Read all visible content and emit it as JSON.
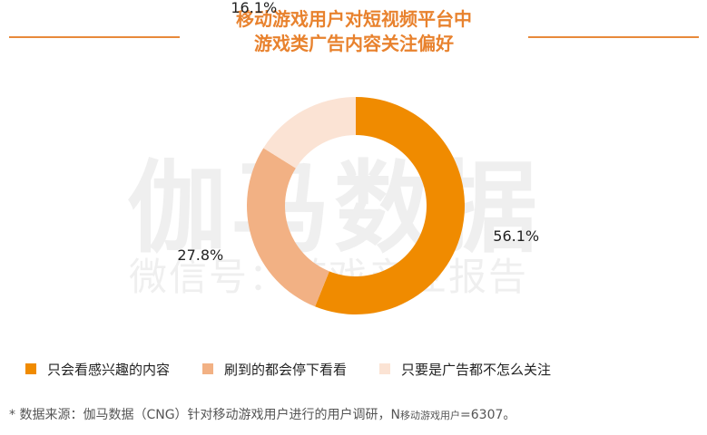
{
  "title_line1": "移动游戏用户对短视频平台中",
  "title_line2": "游戏类广告内容关注偏好",
  "watermark": {
    "main": "伽马数据",
    "sub": "微信号：游戏产业报告"
  },
  "chart_data": {
    "type": "pie",
    "donut": true,
    "categories": [
      "只会看感兴趣的内容",
      "刷到的都会停下看看",
      "只要是广告都不怎么关注"
    ],
    "values": [
      56.1,
      27.8,
      16.1
    ],
    "labels": [
      "56.1%",
      "27.8%",
      "16.1%"
    ],
    "colors": [
      "#f08b00",
      "#f2b184",
      "#fbe3d4"
    ],
    "legend": "bottom"
  },
  "footnote": {
    "prefix": "*  数据来源：伽马数据（CNG）针对移动游戏用户进行的用户调研，N",
    "sub": "移动游戏用户",
    "suffix": "=6307。"
  }
}
